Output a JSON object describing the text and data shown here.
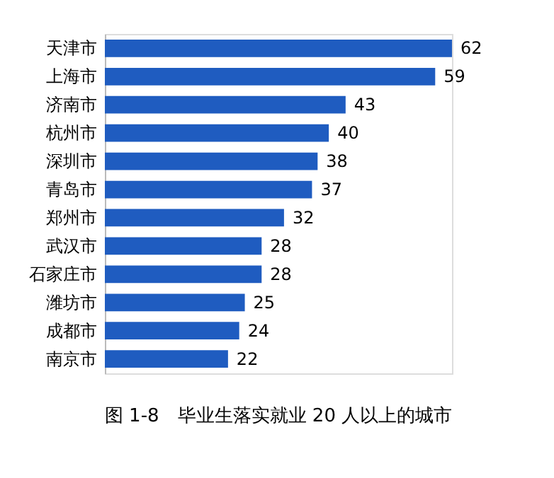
{
  "chart_data": {
    "type": "bar",
    "orientation": "horizontal",
    "title": "图 1-8　毕业生落实就业 20 人以上的城市",
    "categories": [
      "天津市",
      "上海市",
      "济南市",
      "杭州市",
      "深圳市",
      "青岛市",
      "郑州市",
      "武汉市",
      "石家庄市",
      "潍坊市",
      "成都市",
      "南京市"
    ],
    "values": [
      62,
      59,
      43,
      40,
      38,
      37,
      32,
      28,
      28,
      25,
      24,
      22
    ],
    "color": "#1f5cc0",
    "data_labels": true
  }
}
